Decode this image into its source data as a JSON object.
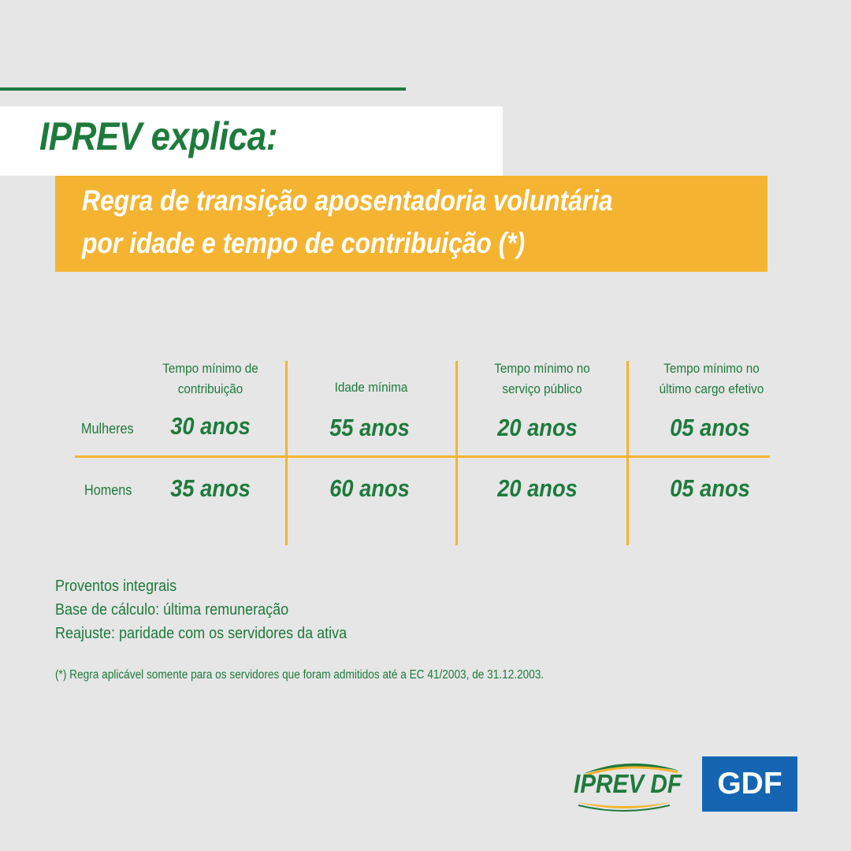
{
  "header": {
    "title": "IPREV explica:",
    "subtitle_line1": "Regra de transição aposentadoria voluntária",
    "subtitle_line2": "por idade e tempo de contribuição (*)"
  },
  "table": {
    "columns": [
      {
        "line1": "Tempo mínimo de",
        "line2": "contribuição"
      },
      {
        "line1": "Idade mínima",
        "line2": ""
      },
      {
        "line1": "Tempo mínimo no",
        "line2": "serviço público"
      },
      {
        "line1": "Tempo mínimo no",
        "line2": "último cargo efetivo"
      }
    ],
    "rows": [
      {
        "label": "Mulheres",
        "values": [
          "30 anos",
          "55 anos",
          "20 anos",
          "05 anos"
        ]
      },
      {
        "label": "Homens",
        "values": [
          "35 anos",
          "60 anos",
          "20 anos",
          "05 anos"
        ]
      }
    ]
  },
  "notes": [
    "Proventos integrais",
    "Base de cálculo: última remuneração",
    "Reajuste: paridade com os servidores da ativa"
  ],
  "footnote": "(*) Regra aplicável somente para os servidores que foram admitidos até a EC 41/2003, de 31.12.2003.",
  "logos": {
    "iprev": "IPREV DF",
    "gdf": "GDF"
  },
  "colors": {
    "green": "#1e7a3c",
    "yellow": "#f4b431",
    "blue": "#1565b3",
    "background": "#e6e6e6"
  }
}
